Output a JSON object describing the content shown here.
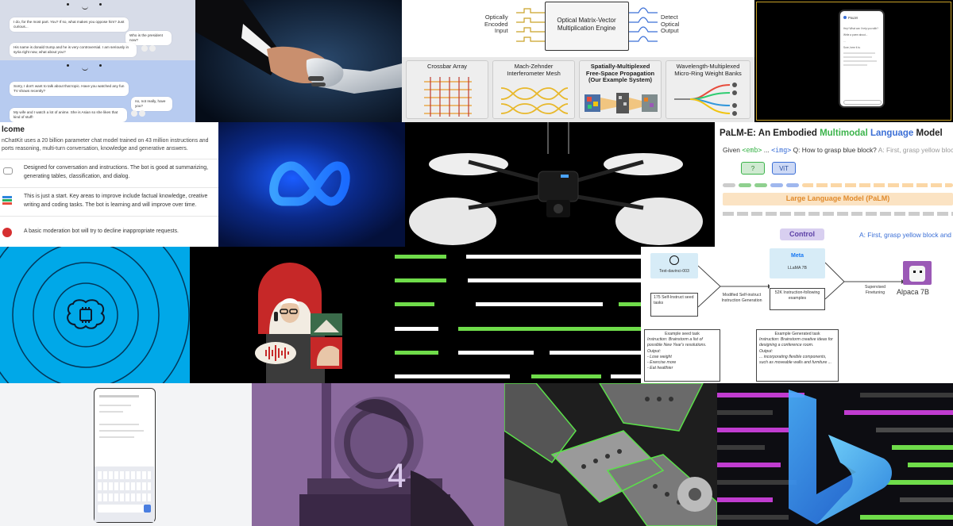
{
  "chat": {
    "messages": [
      {
        "who": "bot",
        "text": "I do, for the most part. You? If so, what makes you oppose him? Just curious..."
      },
      {
        "who": "user",
        "text": "Who is the president now?"
      },
      {
        "who": "bot",
        "text": "His name is donald trump and he is very controversial. I am seriously in syria right now, what about you?"
      },
      {
        "who": "bot",
        "text": "Sorry, I don't want to talk about that topic. Have you watched any fun TV shows recently?"
      },
      {
        "who": "user",
        "text": "no, not really, have you?"
      },
      {
        "who": "bot",
        "text": "My wife and I watch a lot of anime. She is Asian so she likes that kind of stuff!"
      }
    ]
  },
  "optical": {
    "input_label": "Optically\nEncoded\nInput",
    "engine_label": "Optical Matrix-Vector\nMultiplication Engine",
    "output_label": "Detect\nOptical\nOutput",
    "panels": [
      {
        "title": "Crossbar Array"
      },
      {
        "title": "Mach-Zehnder\nInterferometer Mesh"
      },
      {
        "title": "Spatially-Multiplexed\nFree-Space Propagation\n(Our Example System)"
      },
      {
        "title": "Wavelength-Multiplexed\nMicro-Ring Weight Banks"
      }
    ]
  },
  "phone": {
    "title": "PaLM",
    "lines": [
      "Hey! What can I help you with?",
      "Write a poem about...",
      "...",
      "Sure, here it is:"
    ]
  },
  "welcome": {
    "heading": "lcome",
    "intro": "nChatKit uses a 20 billion parameter chat model trained on 43 million instructions and ports reasoning, multi-turn conversation, knowledge and generative answers.",
    "items": [
      {
        "icon": "speech-bubble",
        "text": "Designed for conversation and instructions. The bot is good at summarizing, generating tables, classification, and dialog."
      },
      {
        "icon": "books",
        "text": "This is just a start. Key areas to improve include factual knowledge, creative writing and coding tasks. The bot is learning and will improve over time."
      },
      {
        "icon": "stop-sign",
        "text": "A basic moderation bot will try to decline inappropriate requests."
      }
    ]
  },
  "palm": {
    "title_prefix": "PaLM-E: An Embodied ",
    "title_multimodal": "Multimodal",
    "title_space": " ",
    "title_language": "Language",
    "title_suffix": " Model",
    "given_label": "Given",
    "emb_token": "<emb>",
    "dots": "...",
    "img_token": "<img>",
    "question": "Q: How to grasp blue block?",
    "answer_hint": "A: First, grasp yellow block",
    "q_box": "?",
    "vit_box": "ViT",
    "llm_label": "Large Language Model (PaLM)",
    "control_label": "Control",
    "answer_out": "A: First, grasp yellow block and"
  },
  "alpaca": {
    "text_davinci": "Text-davinci-003",
    "seed_tasks": "175 Self-Instruct seed tasks",
    "modified_gen": "Modified Self-instruct Instruction Generation",
    "meta_label": "Meta",
    "llama": "LLaMA 7B",
    "examples": "52K Instruction-following examples",
    "sft": "Supervised Finetuning",
    "alpaca_label": "Alpaca 7B",
    "seed_example_title": "Example seed task",
    "seed_example_body": "Instruction: Brainstorm a list of possible New Year's resolutions.",
    "seed_output_title": "Output:",
    "seed_output_items": [
      "- Lose weight",
      "- Exercise more",
      "- Eat healthier"
    ],
    "gen_example_title": "Example Generated task",
    "gen_example_body": "Instruction: Brainstorm creative ideas for designing a conference room.",
    "gen_output_title": "Output:",
    "gen_output_body": "... incorporating flexible components, such as moveable walls and furniture ..."
  },
  "gpt4": {
    "number": "4"
  },
  "colors": {
    "meta_blue": "#1877f2",
    "palm_green": "#3cb44b",
    "palm_blue": "#3b6fd6",
    "stripe_green": "#6fdc4a",
    "brain_bg": "#00a8e8",
    "gpt4_purple": "#8b6a9e"
  }
}
